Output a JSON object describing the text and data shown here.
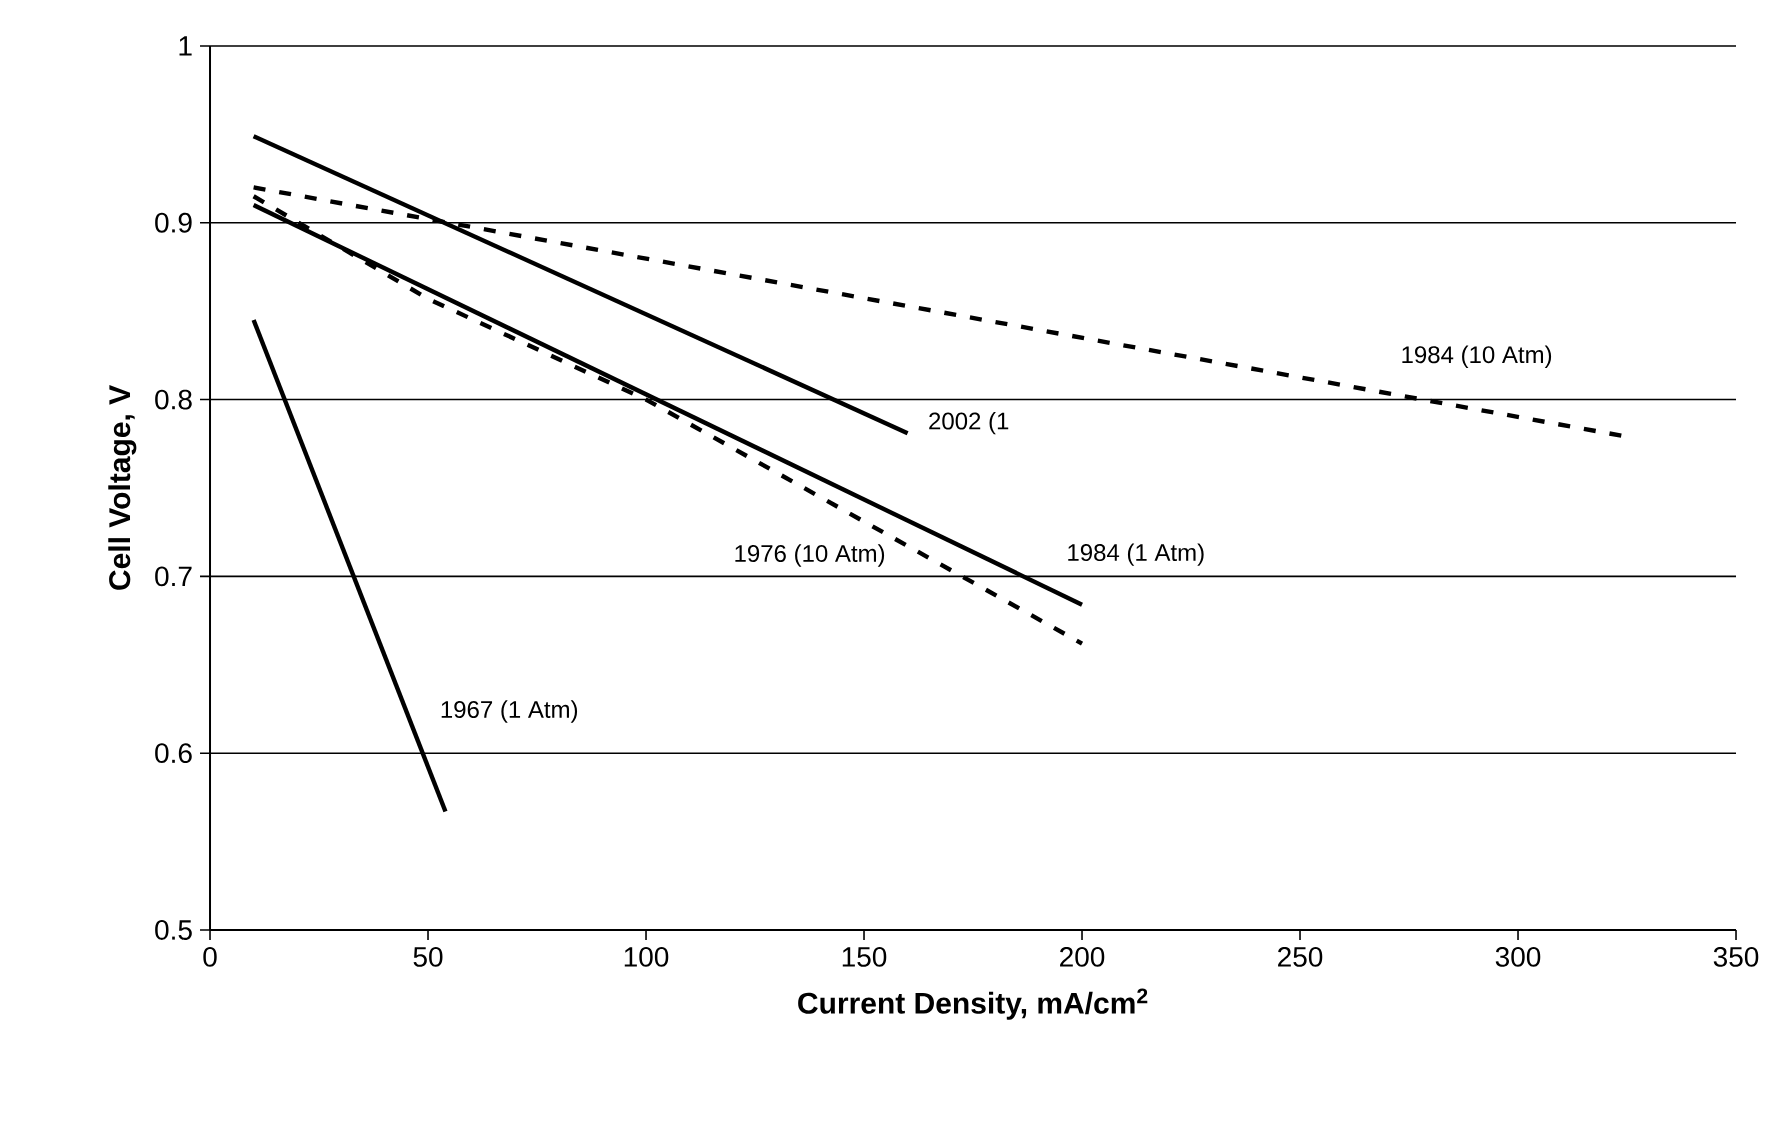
{
  "chart_data": {
    "type": "line",
    "xlabel": "Current Density, mA/cm$^{2}$",
    "ylabel": "Cell Voltage, V",
    "xlim": [
      0,
      350
    ],
    "xticks": [
      0,
      50,
      100,
      150,
      200,
      250,
      300,
      350
    ],
    "ylim": [
      0.5,
      1
    ],
    "yticks": [
      0.5,
      0.6,
      0.7,
      0.8,
      0.9,
      1
    ],
    "grid": "y",
    "series": [
      {
        "name": "2002 (1",
        "color": "#000000",
        "line_style": "solid",
        "x": [
          10,
          160
        ],
        "values": [
          0.949,
          0.781
        ]
      },
      {
        "name": "1984 (10 Atm)",
        "color": "#000000",
        "line_style": "dashed",
        "x": [
          10,
          325
        ],
        "values": [
          0.92,
          0.779
        ]
      },
      {
        "name": "1984 (1 Atm)",
        "color": "#000000",
        "line_style": "solid",
        "x": [
          10,
          200
        ],
        "values": [
          0.91,
          0.684
        ]
      },
      {
        "name": "1976 (10 Atm)",
        "color": "#000000",
        "line_style": "dashed",
        "x": [
          10,
          50,
          100,
          200
        ],
        "values": [
          0.915,
          0.857,
          0.8,
          0.662
        ]
      },
      {
        "name": "1967 (1 Atm)",
        "color": "#000000",
        "line_style": "solid",
        "x": [
          10,
          54
        ],
        "values": [
          0.845,
          0.567
        ]
      }
    ]
  }
}
